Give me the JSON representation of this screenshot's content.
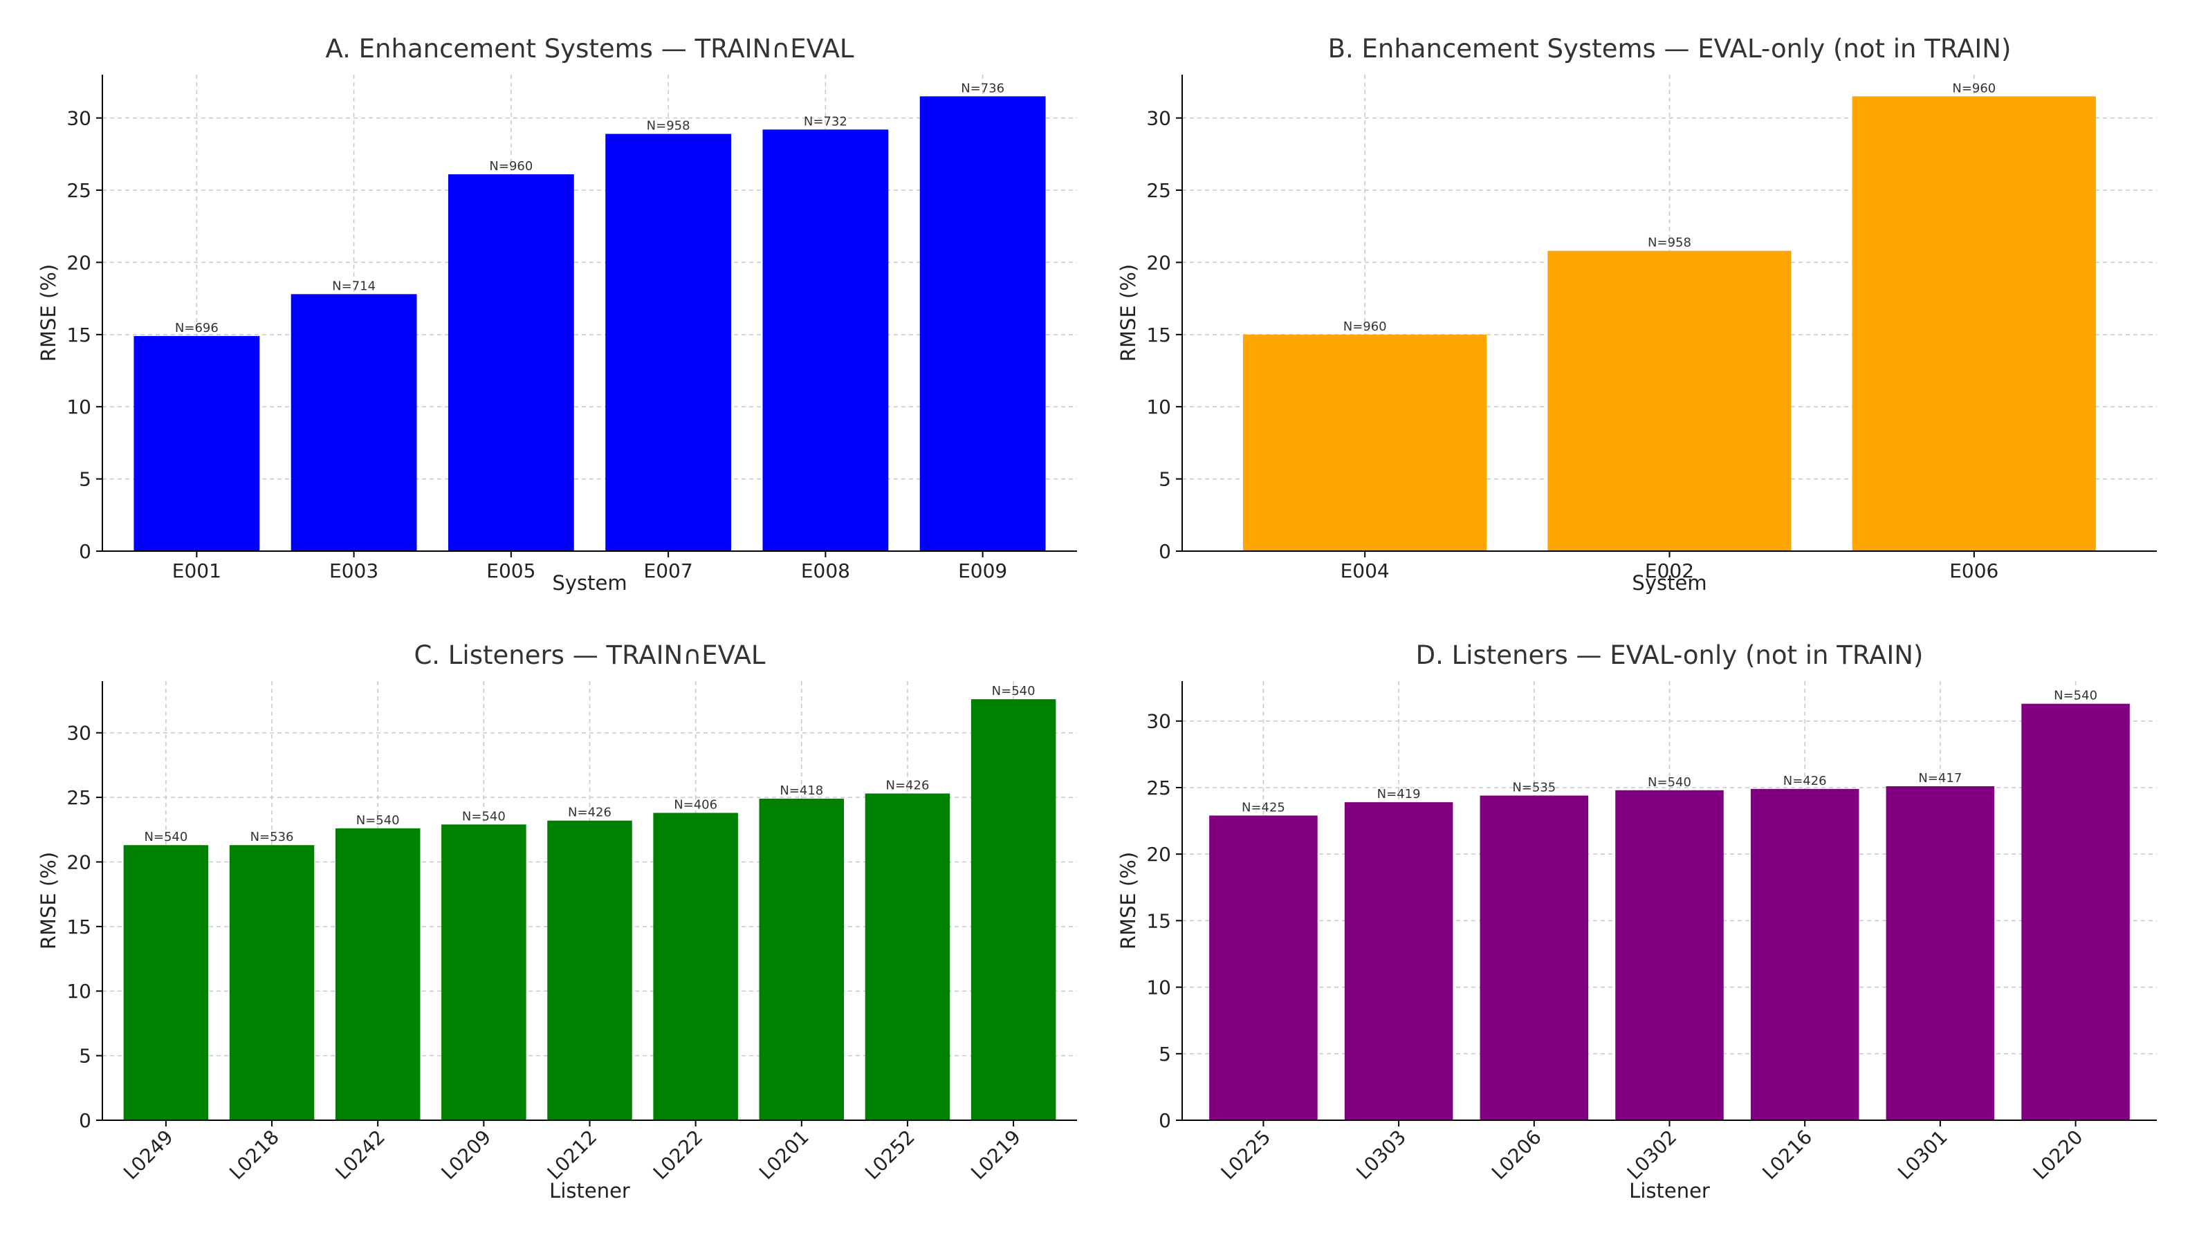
{
  "chart_data": [
    {
      "type": "bar",
      "title": "A. Enhancement Systems — TRAIN∩EVAL",
      "xlabel": "System",
      "ylabel": "RMSE (%)",
      "ylim": [
        0,
        33
      ],
      "yticks": [
        0,
        5,
        10,
        15,
        20,
        25,
        30
      ],
      "grid": true,
      "color": "#0000ff",
      "rotate_x_labels": false,
      "categories": [
        "E001",
        "E003",
        "E005",
        "E007",
        "E008",
        "E009"
      ],
      "values": [
        14.9,
        17.8,
        26.1,
        28.9,
        29.2,
        31.5
      ],
      "bar_labels": [
        "N=696",
        "N=714",
        "N=960",
        "N=958",
        "N=732",
        "N=736"
      ]
    },
    {
      "type": "bar",
      "title": "B. Enhancement Systems — EVAL-only (not in TRAIN)",
      "xlabel": "System",
      "ylabel": "RMSE (%)",
      "ylim": [
        0,
        33
      ],
      "yticks": [
        0,
        5,
        10,
        15,
        20,
        25,
        30
      ],
      "grid": true,
      "color": "#ffa500",
      "rotate_x_labels": false,
      "categories": [
        "E004",
        "E002",
        "E006"
      ],
      "values": [
        15.0,
        20.8,
        31.5
      ],
      "bar_labels": [
        "N=960",
        "N=958",
        "N=960"
      ]
    },
    {
      "type": "bar",
      "title": "C. Listeners — TRAIN∩EVAL",
      "xlabel": "Listener",
      "ylabel": "RMSE (%)",
      "ylim": [
        0,
        34
      ],
      "yticks": [
        0,
        5,
        10,
        15,
        20,
        25,
        30
      ],
      "grid": true,
      "color": "#008000",
      "rotate_x_labels": true,
      "categories": [
        "L0249",
        "L0218",
        "L0242",
        "L0209",
        "L0212",
        "L0222",
        "L0201",
        "L0252",
        "L0219"
      ],
      "values": [
        21.3,
        21.3,
        22.6,
        22.9,
        23.2,
        23.8,
        24.9,
        25.3,
        32.6
      ],
      "bar_labels": [
        "N=540",
        "N=536",
        "N=540",
        "N=540",
        "N=426",
        "N=406",
        "N=418",
        "N=426",
        "N=540"
      ]
    },
    {
      "type": "bar",
      "title": "D. Listeners — EVAL-only (not in TRAIN)",
      "xlabel": "Listener",
      "ylabel": "RMSE (%)",
      "ylim": [
        0,
        33
      ],
      "yticks": [
        0,
        5,
        10,
        15,
        20,
        25,
        30
      ],
      "grid": true,
      "color": "#800080",
      "rotate_x_labels": true,
      "categories": [
        "L0225",
        "L0303",
        "L0206",
        "L0302",
        "L0216",
        "L0301",
        "L0220"
      ],
      "values": [
        22.9,
        23.9,
        24.4,
        24.8,
        24.9,
        25.1,
        31.3
      ],
      "bar_labels": [
        "N=425",
        "N=419",
        "N=535",
        "N=540",
        "N=426",
        "N=417",
        "N=540"
      ]
    }
  ]
}
